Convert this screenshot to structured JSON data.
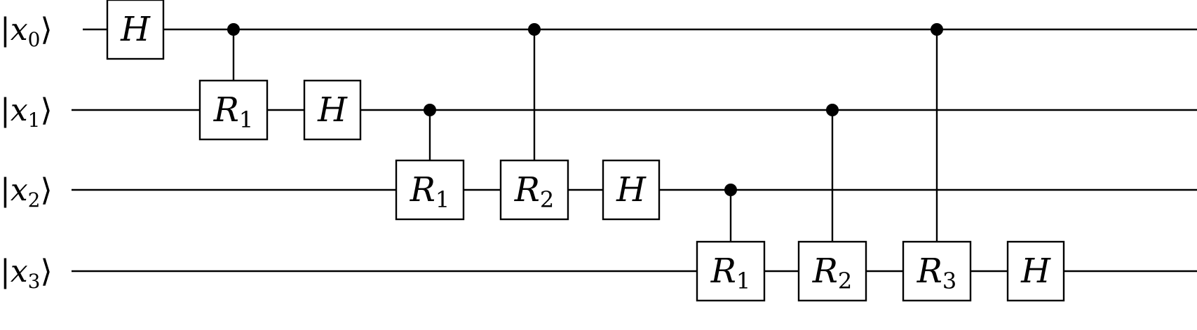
{
  "circuit": {
    "qubits": [
      {
        "label": "x",
        "index": "0"
      },
      {
        "label": "x",
        "index": "1"
      },
      {
        "label": "x",
        "index": "2"
      },
      {
        "label": "x",
        "index": "3"
      }
    ],
    "gates": [
      {
        "type": "single",
        "qubit": 0,
        "name": "H",
        "sub": "",
        "step": 0
      },
      {
        "type": "controlled",
        "control": 0,
        "target": 1,
        "name": "R",
        "sub": "1",
        "step": 1
      },
      {
        "type": "single",
        "qubit": 1,
        "name": "H",
        "sub": "",
        "step": 2
      },
      {
        "type": "controlled",
        "control": 1,
        "target": 2,
        "name": "R",
        "sub": "1",
        "step": 3
      },
      {
        "type": "controlled",
        "control": 0,
        "target": 2,
        "name": "R",
        "sub": "2",
        "step": 4
      },
      {
        "type": "single",
        "qubit": 2,
        "name": "H",
        "sub": "",
        "step": 5
      },
      {
        "type": "controlled",
        "control": 2,
        "target": 3,
        "name": "R",
        "sub": "1",
        "step": 6
      },
      {
        "type": "controlled",
        "control": 1,
        "target": 3,
        "name": "R",
        "sub": "2",
        "step": 7
      },
      {
        "type": "controlled",
        "control": 0,
        "target": 3,
        "name": "R",
        "sub": "3",
        "step": 8
      },
      {
        "type": "single",
        "qubit": 3,
        "name": "H",
        "sub": "",
        "step": 9
      }
    ]
  }
}
